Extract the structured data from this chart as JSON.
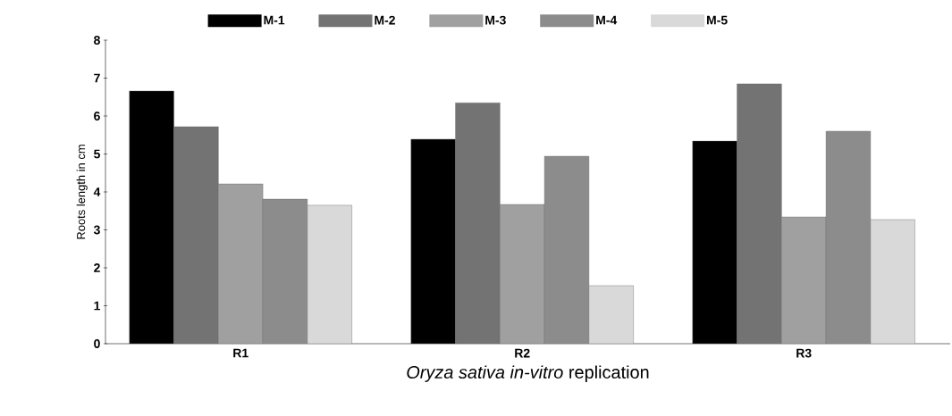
{
  "chart_data": {
    "type": "bar",
    "xlabel": "*Oryza sativa in-vitro* replication",
    "ylabel": "Roots length in cm",
    "categories": [
      "R1",
      "R2",
      "R3"
    ],
    "series": [
      {
        "name": "M-1",
        "color": "#000000",
        "values": [
          6.66,
          5.39,
          5.34
        ]
      },
      {
        "name": "M-2",
        "color": "#737373",
        "values": [
          5.72,
          6.35,
          6.85
        ]
      },
      {
        "name": "M-3",
        "color": "#a0a0a0",
        "values": [
          4.21,
          3.67,
          3.34
        ]
      },
      {
        "name": "M-4",
        "color": "#8c8c8c",
        "values": [
          3.81,
          4.94,
          5.6
        ]
      },
      {
        "name": "M-5",
        "color": "#d9d9d9",
        "values": [
          3.65,
          1.53,
          3.27
        ]
      }
    ],
    "ylim": [
      0,
      8
    ],
    "yticks": [
      0,
      1,
      2,
      3,
      4,
      5,
      6,
      7,
      8
    ],
    "legend": "top"
  }
}
